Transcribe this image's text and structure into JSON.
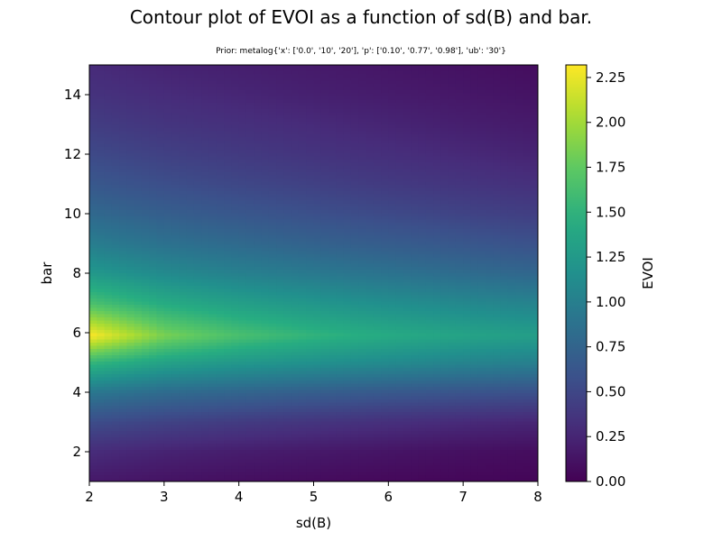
{
  "figure": {
    "title": "Contour plot of EVOI as a function of sd(B) and bar.",
    "subtitle": "Prior: metalog{'x': ['0.0', '10', '20'], 'p': ['0.10', '0.77', '0.98'], 'ub': '30'}"
  },
  "chart_data": {
    "type": "heatmap",
    "title": "Contour plot of EVOI as a function of sd(B) and bar.",
    "subtitle": "Prior: metalog{'x': ['0.0', '10', '20'], 'p': ['0.10', '0.77', '0.98'], 'ub': '30'}",
    "xlabel": "sd(B)",
    "ylabel": "bar",
    "xlim": [
      2,
      8
    ],
    "ylim": [
      1,
      15
    ],
    "x_ticks": [
      "2",
      "3",
      "4",
      "5",
      "6",
      "7",
      "8"
    ],
    "y_ticks": [
      "2",
      "4",
      "6",
      "8",
      "10",
      "12",
      "14"
    ],
    "colorbar": {
      "label": "EVOI",
      "range": [
        0,
        2.32
      ],
      "ticks": [
        "0.00",
        "0.25",
        "0.50",
        "0.75",
        "1.00",
        "1.25",
        "1.50",
        "1.75",
        "2.00",
        "2.25"
      ],
      "colormap": "viridis"
    },
    "peak": {
      "sd": 2.0,
      "bar": 5.9,
      "evoi": 2.32
    },
    "x": [
      2,
      3,
      4,
      5,
      6,
      7,
      8
    ],
    "y": [
      1,
      2,
      3,
      4,
      5,
      5.9,
      7,
      8,
      9,
      10,
      11,
      12,
      13,
      14,
      15
    ],
    "z": [
      [
        0.16,
        0.12,
        0.09,
        0.07,
        0.05,
        0.04,
        0.03
      ],
      [
        0.29,
        0.23,
        0.19,
        0.16,
        0.13,
        0.1,
        0.08
      ],
      [
        0.55,
        0.47,
        0.41,
        0.36,
        0.32,
        0.28,
        0.25
      ],
      [
        0.93,
        0.82,
        0.76,
        0.7,
        0.65,
        0.61,
        0.58
      ],
      [
        1.54,
        1.34,
        1.24,
        1.17,
        1.11,
        1.05,
        1.01
      ],
      [
        2.32,
        1.85,
        1.64,
        1.51,
        1.42,
        1.35,
        1.3
      ],
      [
        1.64,
        1.42,
        1.3,
        1.21,
        1.14,
        1.08,
        1.03
      ],
      [
        1.24,
        1.1,
        1.01,
        0.94,
        0.88,
        0.82,
        0.77
      ],
      [
        0.98,
        0.87,
        0.8,
        0.73,
        0.68,
        0.63,
        0.58
      ],
      [
        0.79,
        0.7,
        0.63,
        0.57,
        0.52,
        0.47,
        0.43
      ],
      [
        0.64,
        0.56,
        0.5,
        0.45,
        0.4,
        0.36,
        0.32
      ],
      [
        0.52,
        0.45,
        0.4,
        0.35,
        0.31,
        0.27,
        0.23
      ],
      [
        0.42,
        0.36,
        0.32,
        0.28,
        0.24,
        0.2,
        0.17
      ],
      [
        0.34,
        0.29,
        0.25,
        0.21,
        0.18,
        0.15,
        0.12
      ],
      [
        0.28,
        0.23,
        0.2,
        0.17,
        0.14,
        0.11,
        0.08
      ]
    ]
  },
  "colors": {
    "axis": "#000000",
    "background": "#ffffff"
  }
}
